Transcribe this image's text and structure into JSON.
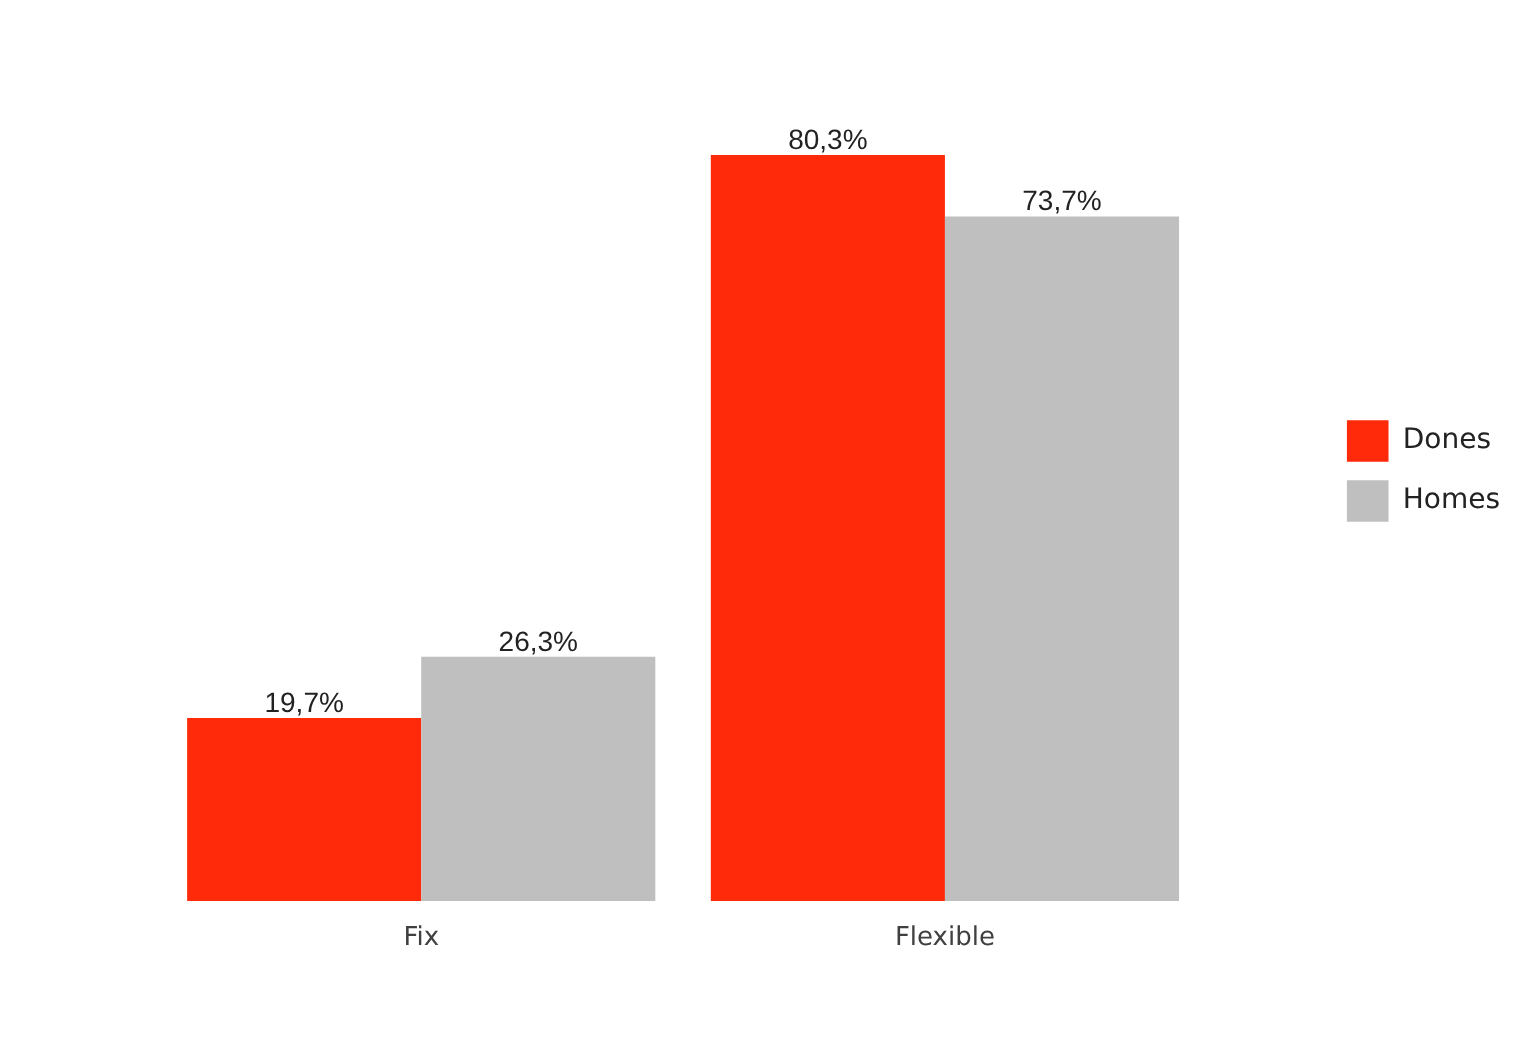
{
  "chart_data": {
    "type": "bar",
    "categories": [
      "Fix",
      "Flexible"
    ],
    "series": [
      {
        "name": "Dones",
        "color": "#ff2a0a",
        "values": [
          19.7,
          80.3
        ],
        "value_labels": [
          "19,7%",
          "80,3%"
        ]
      },
      {
        "name": "Homes",
        "color": "#bfbfbf",
        "values": [
          26.3,
          73.7
        ],
        "value_labels": [
          "26,3%",
          "73,7%"
        ]
      }
    ],
    "legend": "right",
    "grid": false,
    "tick_labels": "x"
  }
}
